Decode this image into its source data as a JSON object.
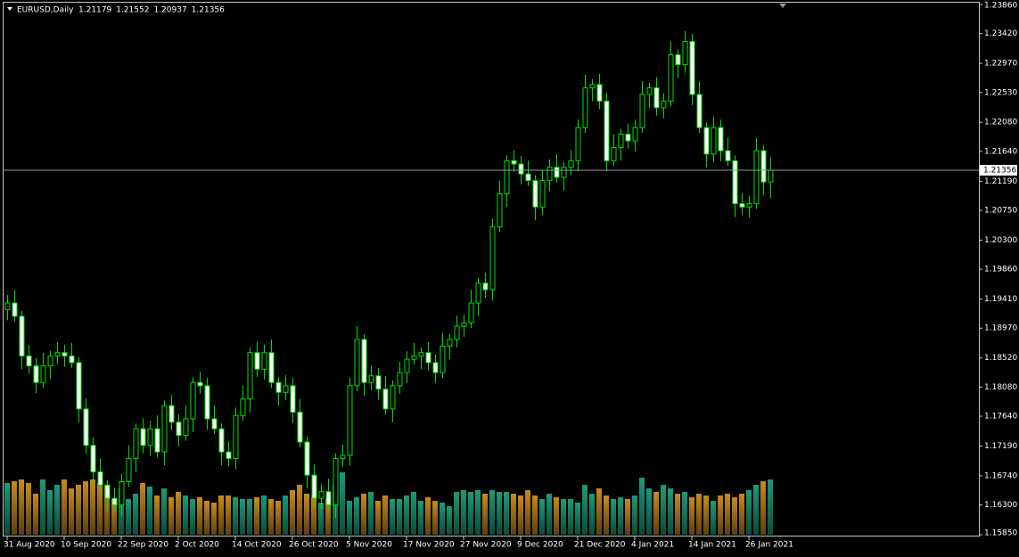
{
  "chart_data": {
    "type": "candlestick",
    "title": "EURUSD,Daily",
    "header_ohlc": [
      1.21179,
      1.21552,
      1.20937,
      1.21356
    ],
    "categories": [
      "31 Aug 2020",
      null,
      null,
      null,
      null,
      null,
      null,
      null,
      "10 Sep 2020",
      null,
      null,
      null,
      null,
      null,
      null,
      null,
      "22 Sep 2020",
      null,
      null,
      null,
      null,
      null,
      null,
      null,
      "2 Oct 2020",
      null,
      null,
      null,
      null,
      null,
      null,
      null,
      "14 Oct 2020",
      null,
      null,
      null,
      null,
      null,
      null,
      null,
      "26 Oct 2020",
      null,
      null,
      null,
      null,
      null,
      null,
      null,
      "5 Nov 2020",
      null,
      null,
      null,
      null,
      null,
      null,
      null,
      "17 Nov 2020",
      null,
      null,
      null,
      null,
      null,
      null,
      null,
      "27 Nov 2020",
      null,
      null,
      null,
      null,
      null,
      null,
      null,
      "9 Dec 2020",
      null,
      null,
      null,
      null,
      null,
      null,
      null,
      "21 Dec 2020",
      null,
      null,
      null,
      null,
      null,
      null,
      null,
      "4 Jan 2021",
      null,
      null,
      null,
      null,
      null,
      null,
      null,
      "14 Jan 2021",
      null,
      null,
      null,
      null,
      null,
      null,
      null,
      "26 Jan 2021",
      null,
      null,
      null
    ],
    "open": [
      1.1925,
      1.1935,
      1.1915,
      1.1855,
      1.184,
      1.1815,
      1.184,
      1.1855,
      1.186,
      1.1855,
      1.1845,
      1.1775,
      1.172,
      1.168,
      1.166,
      1.164,
      1.163,
      1.1665,
      1.17,
      1.1745,
      1.172,
      1.1745,
      1.171,
      1.178,
      1.1755,
      1.1735,
      1.176,
      1.1815,
      1.181,
      1.176,
      1.1745,
      1.171,
      1.17,
      1.1765,
      1.179,
      1.186,
      1.1835,
      1.186,
      1.1815,
      1.18,
      1.181,
      1.177,
      1.1725,
      1.1675,
      1.164,
      1.165,
      1.163,
      1.17,
      1.1705,
      1.181,
      1.188,
      1.1815,
      1.1825,
      1.1805,
      1.1775,
      1.181,
      1.183,
      1.185,
      1.1855,
      1.186,
      1.1845,
      1.183,
      1.187,
      1.188,
      1.19,
      1.1905,
      1.1935,
      1.1965,
      1.1955,
      1.205,
      1.21,
      1.215,
      1.2145,
      1.213,
      1.212,
      1.208,
      1.212,
      1.214,
      1.2125,
      1.214,
      1.215,
      1.22,
      1.226,
      1.2265,
      1.224,
      1.215,
      1.217,
      1.219,
      1.218,
      1.22,
      1.225,
      1.226,
      1.223,
      1.224,
      1.231,
      1.2295,
      1.233,
      1.225,
      1.22,
      1.216,
      1.22,
      1.2165,
      1.215,
      1.2085,
      1.208,
      1.2085,
      1.2165,
      1.21179
    ],
    "high": [
      1.1947,
      1.1955,
      1.1923,
      1.1871,
      1.1852,
      1.186,
      1.1863,
      1.1876,
      1.1872,
      1.1875,
      1.1853,
      1.1791,
      1.1732,
      1.17,
      1.1668,
      1.1656,
      1.1677,
      1.172,
      1.1753,
      1.1761,
      1.1757,
      1.1765,
      1.1788,
      1.1796,
      1.1767,
      1.178,
      1.1823,
      1.1831,
      1.1822,
      1.178,
      1.1753,
      1.1726,
      1.1777,
      1.181,
      1.1868,
      1.1876,
      1.1872,
      1.188,
      1.1823,
      1.1826,
      1.1822,
      1.179,
      1.1733,
      1.1691,
      1.1662,
      1.167,
      1.1708,
      1.1721,
      1.1822,
      1.19,
      1.1888,
      1.1841,
      1.1837,
      1.1825,
      1.1818,
      1.1846,
      1.1862,
      1.1875,
      1.1868,
      1.1876,
      1.1857,
      1.189,
      1.1888,
      1.1916,
      1.1917,
      1.1955,
      1.1973,
      1.1981,
      1.2062,
      1.212,
      1.2158,
      1.2166,
      1.2157,
      1.215,
      1.2128,
      1.2136,
      1.2152,
      1.216,
      1.2148,
      1.2166,
      1.2212,
      1.228,
      1.2273,
      1.2281,
      1.2252,
      1.219,
      1.2198,
      1.2206,
      1.2212,
      1.227,
      1.2268,
      1.2276,
      1.2252,
      1.233,
      1.2318,
      1.2346,
      1.2342,
      1.227,
      1.2208,
      1.2216,
      1.2212,
      1.2185,
      1.2158,
      1.2101,
      1.2097,
      1.2185,
      1.2173,
      1.21552
    ],
    "low": [
      1.1909,
      1.1907,
      1.1835,
      1.1828,
      1.1799,
      1.1807,
      1.182,
      1.1843,
      1.1839,
      1.1837,
      1.1755,
      1.1708,
      1.1664,
      1.1652,
      1.162,
      1.1618,
      1.1614,
      1.1657,
      1.168,
      1.1708,
      1.1704,
      1.1702,
      1.169,
      1.1743,
      1.1719,
      1.1727,
      1.174,
      1.1798,
      1.1744,
      1.1737,
      1.169,
      1.1688,
      1.1684,
      1.1757,
      1.177,
      1.1823,
      1.1819,
      1.1807,
      1.178,
      1.1788,
      1.1754,
      1.1717,
      1.1655,
      1.1628,
      1.1624,
      1.1622,
      1.161,
      1.1688,
      1.1689,
      1.1802,
      1.1795,
      1.1803,
      1.1789,
      1.1767,
      1.1755,
      1.1798,
      1.1814,
      1.1842,
      1.1835,
      1.1833,
      1.1814,
      1.1822,
      1.185,
      1.1868,
      1.1884,
      1.1897,
      1.1915,
      1.1943,
      1.1939,
      1.2042,
      1.208,
      1.2133,
      1.2114,
      1.2112,
      1.206,
      1.2068,
      1.2104,
      1.2117,
      1.2105,
      1.2128,
      1.2134,
      1.2192,
      1.224,
      1.2228,
      1.2134,
      1.2142,
      1.215,
      1.2168,
      1.2164,
      1.2192,
      1.223,
      1.2218,
      1.2214,
      1.2232,
      1.2275,
      1.2283,
      1.2234,
      1.2192,
      1.214,
      1.2148,
      1.2149,
      1.2142,
      1.2065,
      1.2068,
      1.2064,
      1.2077,
      1.2098,
      1.20937
    ],
    "close": [
      1.1935,
      1.1915,
      1.1855,
      1.184,
      1.1815,
      1.184,
      1.1855,
      1.186,
      1.1855,
      1.1845,
      1.1775,
      1.172,
      1.168,
      1.166,
      1.164,
      1.163,
      1.1665,
      1.17,
      1.1745,
      1.172,
      1.1745,
      1.171,
      1.178,
      1.1755,
      1.1735,
      1.176,
      1.1815,
      1.181,
      1.176,
      1.1745,
      1.171,
      1.17,
      1.1765,
      1.179,
      1.186,
      1.1835,
      1.186,
      1.1815,
      1.18,
      1.181,
      1.177,
      1.1725,
      1.1675,
      1.164,
      1.165,
      1.163,
      1.17,
      1.1705,
      1.181,
      1.188,
      1.1815,
      1.1825,
      1.1805,
      1.1775,
      1.181,
      1.183,
      1.185,
      1.1855,
      1.186,
      1.1845,
      1.183,
      1.187,
      1.188,
      1.19,
      1.1905,
      1.1935,
      1.1965,
      1.1955,
      1.205,
      1.21,
      1.215,
      1.2145,
      1.213,
      1.212,
      1.208,
      1.212,
      1.214,
      1.2125,
      1.214,
      1.215,
      1.22,
      1.226,
      1.2265,
      1.224,
      1.215,
      1.217,
      1.219,
      1.218,
      1.22,
      1.225,
      1.226,
      1.223,
      1.224,
      1.231,
      1.2295,
      1.233,
      1.225,
      1.22,
      1.216,
      1.22,
      1.2165,
      1.215,
      1.2085,
      1.208,
      1.2085,
      1.2165,
      1.21179,
      1.21356
    ],
    "volume": [
      58,
      60,
      62,
      58,
      46,
      62,
      50,
      56,
      62,
      52,
      56,
      60,
      62,
      58,
      56,
      40,
      52,
      40,
      46,
      58,
      54,
      44,
      52,
      42,
      48,
      44,
      40,
      42,
      38,
      36,
      44,
      44,
      42,
      40,
      40,
      42,
      44,
      40,
      38,
      44,
      50,
      56,
      46,
      42,
      36,
      40,
      56,
      70,
      38,
      42,
      46,
      48,
      38,
      44,
      40,
      40,
      44,
      48,
      38,
      42,
      38,
      36,
      32,
      48,
      50,
      48,
      50,
      46,
      50,
      48,
      48,
      46,
      44,
      50,
      44,
      40,
      46,
      42,
      40,
      40,
      36,
      56,
      46,
      52,
      44,
      40,
      42,
      40,
      44,
      64,
      52,
      48,
      56,
      52,
      46,
      48,
      42,
      46,
      44,
      38,
      44,
      46,
      42,
      46,
      50,
      56,
      60,
      62
    ],
    "ylim": [
      1.1585,
      1.2386
    ],
    "yticks": [
      {
        "value": 1.2386,
        "label": "1.23860"
      },
      {
        "value": 1.2342,
        "label": "1.23420"
      },
      {
        "value": 1.2297,
        "label": "1.22970"
      },
      {
        "value": 1.2253,
        "label": "1.22530"
      },
      {
        "value": 1.2208,
        "label": "1.22080"
      },
      {
        "value": 1.2164,
        "label": "1.21640"
      },
      {
        "value": 1.2119,
        "label": "1.21190"
      },
      {
        "value": 1.2075,
        "label": "1.20750"
      },
      {
        "value": 1.203,
        "label": "1.20300"
      },
      {
        "value": 1.1986,
        "label": "1.19860"
      },
      {
        "value": 1.1941,
        "label": "1.19410"
      },
      {
        "value": 1.1897,
        "label": "1.18970"
      },
      {
        "value": 1.1852,
        "label": "1.18520"
      },
      {
        "value": 1.1808,
        "label": "1.18080"
      },
      {
        "value": 1.1764,
        "label": "1.17640"
      },
      {
        "value": 1.1719,
        "label": "1.17190"
      },
      {
        "value": 1.1674,
        "label": "1.16740"
      },
      {
        "value": 1.163,
        "label": "1.16300"
      },
      {
        "value": 1.1585,
        "label": "1.15850"
      }
    ],
    "up_color": "#00e000",
    "down_fill": "#ffffff",
    "up_fill": "#000000",
    "volume_up_color": "#1e9a78",
    "volume_down_color": "#c88a1e"
  }
}
